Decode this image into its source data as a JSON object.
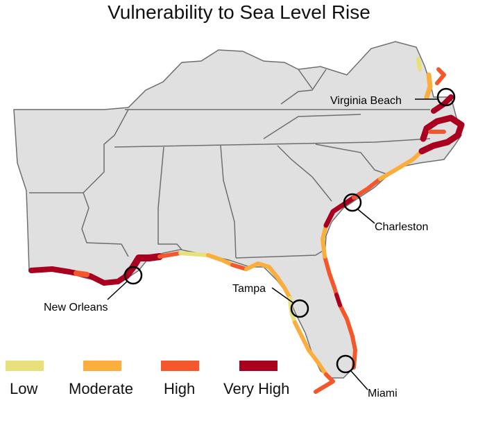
{
  "title": "Vulnerability to Sea Level Rise",
  "legend": [
    {
      "label": "Low",
      "color": "#e8e07a"
    },
    {
      "label": "Moderate",
      "color": "#fcae3d"
    },
    {
      "label": "High",
      "color": "#f4572b"
    },
    {
      "label": "Very High",
      "color": "#a8001e"
    }
  ],
  "cities": {
    "virginia_beach": "Virginia Beach",
    "charleston": "Charleston",
    "tampa": "Tampa",
    "new_orleans": "New Orleans",
    "miami": "Miami"
  },
  "colors": {
    "land": "#e0e0e0",
    "border": "#6e6e6e"
  }
}
